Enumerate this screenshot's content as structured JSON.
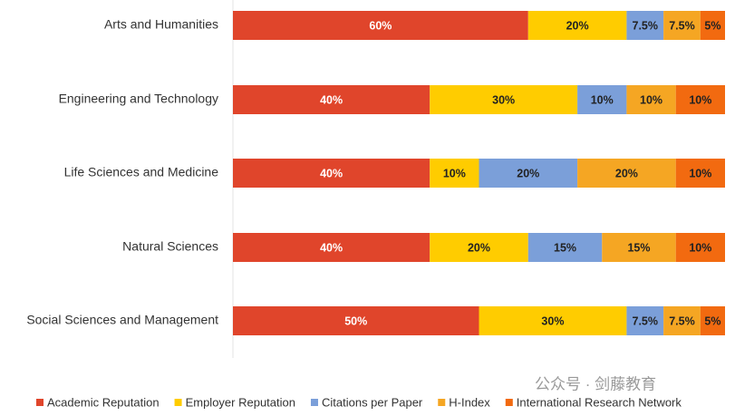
{
  "chart_data": {
    "type": "stacked-bar-horizontal",
    "categories": [
      "Arts and Humanities",
      "Engineering and Technology",
      "Life Sciences and Medicine",
      "Natural Sciences",
      "Social Sciences and Management"
    ],
    "series": [
      {
        "name": "Academic Reputation",
        "color": "#e0452b",
        "values": [
          60,
          40,
          40,
          40,
          50
        ],
        "value_labels": [
          "60%",
          "40%",
          "40%",
          "40%",
          "50%"
        ]
      },
      {
        "name": "Employer Reputation",
        "color": "#ffcc00",
        "values": [
          20,
          30,
          10,
          20,
          30
        ],
        "value_labels": [
          "20%",
          "30%",
          "10%",
          "20%",
          "30%"
        ]
      },
      {
        "name": "Citations per Paper",
        "color": "#7b9fd9",
        "values": [
          7.5,
          10,
          20,
          15,
          7.5
        ],
        "value_labels": [
          "7.5%",
          "10%",
          "20%",
          "15%",
          "7.5%"
        ]
      },
      {
        "name": "H-Index",
        "color": "#f5a623",
        "values": [
          7.5,
          10,
          20,
          15,
          7.5
        ],
        "value_labels": [
          "7.5%",
          "10%",
          "20%",
          "15%",
          "7.5%"
        ]
      },
      {
        "name": "International Research Network",
        "color": "#f26a10",
        "values": [
          5,
          10,
          10,
          10,
          5
        ],
        "value_labels": [
          "5%",
          "10%",
          "10%",
          "10%",
          "5%"
        ]
      }
    ],
    "watermark": "公众号 · 剑藤教育"
  }
}
